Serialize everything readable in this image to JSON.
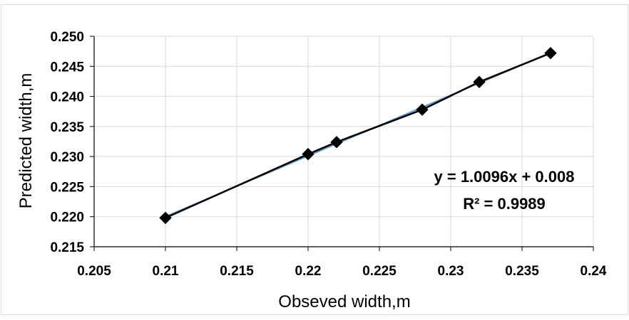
{
  "chart_data": {
    "type": "scatter",
    "xlabel": "Obseved width,m",
    "ylabel": "Predicted width,m",
    "xlim": [
      0.205,
      0.24
    ],
    "ylim": [
      0.215,
      0.25
    ],
    "x_ticks": [
      "0.205",
      "0.21",
      "0.215",
      "0.22",
      "0.225",
      "0.23",
      "0.235",
      "0.24"
    ],
    "y_ticks": [
      "0.215",
      "0.220",
      "0.225",
      "0.230",
      "0.235",
      "0.240",
      "0.245",
      "0.250"
    ],
    "grid": true,
    "legend": "none",
    "series": [
      {
        "x": [
          0.21,
          0.22,
          0.222,
          0.228,
          0.232,
          0.237
        ],
        "y": [
          0.2198,
          0.2304,
          0.2324,
          0.2378,
          0.2424,
          0.2472
        ],
        "marker": "diamond",
        "connected": true
      }
    ],
    "trendline": {
      "slope": 1.0096,
      "intercept": 0.008,
      "x_range": [
        0.21,
        0.237
      ]
    },
    "annotations": {
      "equation": "y = 1.0096x + 0.008",
      "r2": "R² = 0.9989"
    },
    "colors": {
      "series": "#000000",
      "trendline": "#5b9bd5",
      "grid": "#d9d9d9",
      "axis": "#000000"
    }
  }
}
